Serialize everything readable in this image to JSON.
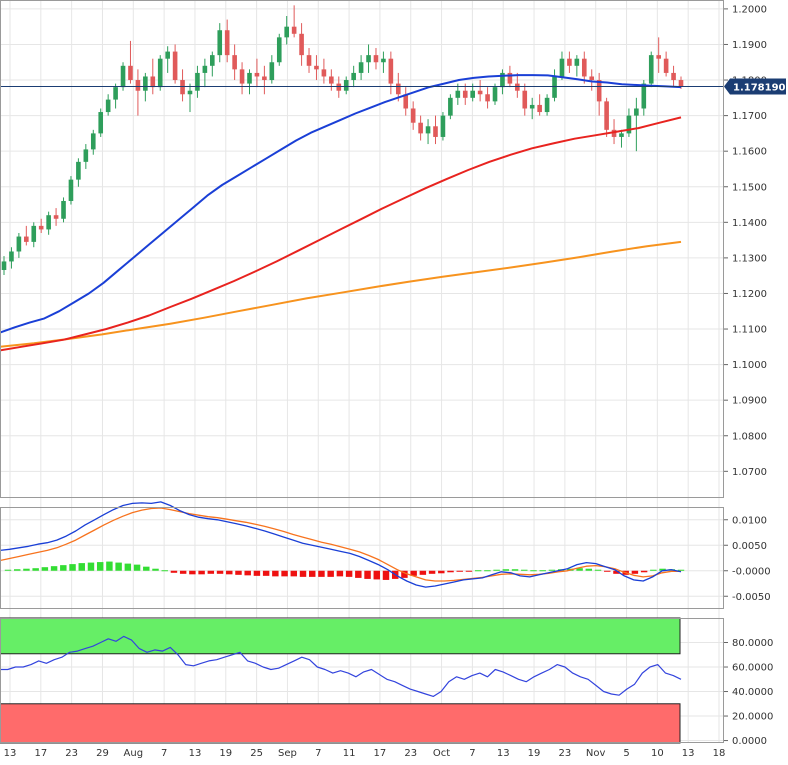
{
  "chart_data": [
    {
      "type": "candlestick",
      "title": "",
      "price_axis": {
        "ylim": [
          1.0625,
          1.2025
        ],
        "ticks": [
          "1.2000",
          "1.1900",
          "1.1800",
          "1.1700",
          "1.1600",
          "1.1500",
          "1.1400",
          "1.1300",
          "1.1200",
          "1.1100",
          "1.1000",
          "1.0900",
          "1.0800",
          "1.0700"
        ],
        "tick_values": [
          1.2,
          1.19,
          1.18,
          1.17,
          1.16,
          1.15,
          1.14,
          1.13,
          1.12,
          1.11,
          1.1,
          1.09,
          1.08,
          1.07
        ]
      },
      "last_price": 1.17819,
      "last_price_label": "1.178190",
      "colors": {
        "up": "#2e9e5b",
        "down": "#e05a5a",
        "sma_fast": "#1a3fd6",
        "sma_mid": "#e8231f",
        "sma_slow": "#f7931e",
        "last_price_line": "#1b3d73"
      },
      "candles": [
        [
          1.1266,
          1.1305,
          1.1252,
          1.129
        ],
        [
          1.129,
          1.133,
          1.127,
          1.1318
        ],
        [
          1.1318,
          1.137,
          1.13,
          1.136
        ],
        [
          1.136,
          1.139,
          1.1335,
          1.1345
        ],
        [
          1.1345,
          1.14,
          1.133,
          1.139
        ],
        [
          1.139,
          1.141,
          1.137,
          1.138
        ],
        [
          1.138,
          1.143,
          1.1365,
          1.142
        ],
        [
          1.142,
          1.144,
          1.139,
          1.141
        ],
        [
          1.141,
          1.147,
          1.14,
          1.146
        ],
        [
          1.146,
          1.153,
          1.145,
          1.152
        ],
        [
          1.152,
          1.158,
          1.15,
          1.157
        ],
        [
          1.157,
          1.162,
          1.155,
          1.1605
        ],
        [
          1.1605,
          1.166,
          1.159,
          1.165
        ],
        [
          1.165,
          1.172,
          1.164,
          1.171
        ],
        [
          1.171,
          1.176,
          1.17,
          1.1745
        ],
        [
          1.1745,
          1.179,
          1.172,
          1.178
        ],
        [
          1.178,
          1.185,
          1.177,
          1.184
        ],
        [
          1.184,
          1.191,
          1.179,
          1.18
        ],
        [
          1.18,
          1.183,
          1.17,
          1.177
        ],
        [
          1.177,
          1.182,
          1.174,
          1.181
        ],
        [
          1.181,
          1.186,
          1.176,
          1.178
        ],
        [
          1.178,
          1.187,
          1.177,
          1.186
        ],
        [
          1.186,
          1.1895,
          1.182,
          1.188
        ],
        [
          1.188,
          1.19,
          1.179,
          1.18
        ],
        [
          1.18,
          1.183,
          1.174,
          1.176
        ],
        [
          1.176,
          1.179,
          1.171,
          1.177
        ],
        [
          1.177,
          1.184,
          1.175,
          1.182
        ],
        [
          1.182,
          1.186,
          1.178,
          1.184
        ],
        [
          1.184,
          1.188,
          1.181,
          1.187
        ],
        [
          1.187,
          1.196,
          1.185,
          1.194
        ],
        [
          1.194,
          1.197,
          1.185,
          1.187
        ],
        [
          1.187,
          1.19,
          1.18,
          1.183
        ],
        [
          1.183,
          1.185,
          1.176,
          1.179
        ],
        [
          1.179,
          1.183,
          1.176,
          1.182
        ],
        [
          1.182,
          1.186,
          1.178,
          1.181
        ],
        [
          1.181,
          1.184,
          1.176,
          1.18
        ],
        [
          1.18,
          1.187,
          1.179,
          1.185
        ],
        [
          1.185,
          1.193,
          1.184,
          1.192
        ],
        [
          1.192,
          1.198,
          1.19,
          1.195
        ],
        [
          1.195,
          1.201,
          1.192,
          1.193
        ],
        [
          1.193,
          1.196,
          1.184,
          1.187
        ],
        [
          1.187,
          1.189,
          1.182,
          1.184
        ],
        [
          1.184,
          1.187,
          1.18,
          1.183
        ],
        [
          1.183,
          1.186,
          1.179,
          1.181
        ],
        [
          1.181,
          1.183,
          1.177,
          1.179
        ],
        [
          1.179,
          1.181,
          1.175,
          1.177
        ],
        [
          1.177,
          1.181,
          1.176,
          1.18
        ],
        [
          1.18,
          1.184,
          1.178,
          1.182
        ],
        [
          1.182,
          1.187,
          1.18,
          1.185
        ],
        [
          1.185,
          1.19,
          1.182,
          1.187
        ],
        [
          1.187,
          1.189,
          1.183,
          1.185
        ],
        [
          1.185,
          1.188,
          1.182,
          1.186
        ],
        [
          1.186,
          1.188,
          1.176,
          1.179
        ],
        [
          1.179,
          1.182,
          1.174,
          1.176
        ],
        [
          1.176,
          1.178,
          1.17,
          1.172
        ],
        [
          1.172,
          1.174,
          1.166,
          1.168
        ],
        [
          1.168,
          1.17,
          1.163,
          1.165
        ],
        [
          1.165,
          1.169,
          1.162,
          1.167
        ],
        [
          1.167,
          1.17,
          1.162,
          1.164
        ],
        [
          1.164,
          1.171,
          1.163,
          1.17
        ],
        [
          1.17,
          1.176,
          1.169,
          1.175
        ],
        [
          1.175,
          1.179,
          1.173,
          1.177
        ],
        [
          1.177,
          1.179,
          1.173,
          1.175
        ],
        [
          1.175,
          1.179,
          1.174,
          1.177
        ],
        [
          1.177,
          1.18,
          1.174,
          1.176
        ],
        [
          1.176,
          1.178,
          1.172,
          1.174
        ],
        [
          1.174,
          1.179,
          1.173,
          1.178
        ],
        [
          1.178,
          1.183,
          1.176,
          1.182
        ],
        [
          1.182,
          1.184,
          1.178,
          1.179
        ],
        [
          1.179,
          1.182,
          1.175,
          1.177
        ],
        [
          1.177,
          1.179,
          1.17,
          1.172
        ],
        [
          1.172,
          1.175,
          1.169,
          1.173
        ],
        [
          1.173,
          1.176,
          1.17,
          1.171
        ],
        [
          1.171,
          1.176,
          1.17,
          1.175
        ],
        [
          1.175,
          1.183,
          1.174,
          1.181
        ],
        [
          1.181,
          1.188,
          1.18,
          1.186
        ],
        [
          1.186,
          1.188,
          1.182,
          1.184
        ],
        [
          1.184,
          1.187,
          1.181,
          1.186
        ],
        [
          1.186,
          1.188,
          1.179,
          1.181
        ],
        [
          1.181,
          1.183,
          1.177,
          1.18
        ],
        [
          1.18,
          1.182,
          1.17,
          1.174
        ],
        [
          1.174,
          1.175,
          1.164,
          1.166
        ],
        [
          1.166,
          1.169,
          1.162,
          1.164
        ],
        [
          1.164,
          1.166,
          1.161,
          1.165
        ],
        [
          1.165,
          1.172,
          1.164,
          1.17
        ],
        [
          1.17,
          1.175,
          1.16,
          1.172
        ],
        [
          1.172,
          1.18,
          1.17,
          1.179
        ],
        [
          1.179,
          1.188,
          1.178,
          1.187
        ],
        [
          1.187,
          1.192,
          1.182,
          1.186
        ],
        [
          1.186,
          1.188,
          1.181,
          1.182
        ],
        [
          1.182,
          1.184,
          1.178,
          1.18
        ],
        [
          1.18,
          1.181,
          1.1775,
          1.1782
        ]
      ],
      "sma_fast": [
        1.109,
        1.1105,
        1.1118,
        1.113,
        1.115,
        1.1175,
        1.12,
        1.123,
        1.1265,
        1.13,
        1.1335,
        1.137,
        1.1405,
        1.144,
        1.1475,
        1.1505,
        1.153,
        1.1555,
        1.158,
        1.1605,
        1.163,
        1.1652,
        1.167,
        1.1688,
        1.1706,
        1.1722,
        1.1738,
        1.1752,
        1.1766,
        1.178,
        1.179,
        1.18,
        1.1806,
        1.181,
        1.1812,
        1.1814,
        1.1814,
        1.1813,
        1.1808,
        1.1802,
        1.1796,
        1.1793,
        1.1788,
        1.1786,
        1.1784,
        1.1782,
        1.178
      ],
      "sma_mid": [
        1.104,
        1.105,
        1.106,
        1.107,
        1.1085,
        1.11,
        1.1118,
        1.1138,
        1.1162,
        1.1185,
        1.121,
        1.1235,
        1.1262,
        1.129,
        1.132,
        1.135,
        1.138,
        1.141,
        1.144,
        1.1468,
        1.1496,
        1.1522,
        1.1547,
        1.157,
        1.159,
        1.1608,
        1.1622,
        1.1635,
        1.1645,
        1.1655,
        1.1665,
        1.168,
        1.1695
      ],
      "sma_slow": [
        1.105,
        1.106,
        1.1072,
        1.1085,
        1.11,
        1.1115,
        1.1132,
        1.115,
        1.1168,
        1.1186,
        1.1202,
        1.1218,
        1.1233,
        1.1247,
        1.126,
        1.1273,
        1.1287,
        1.1302,
        1.1318,
        1.1333,
        1.1345
      ]
    },
    {
      "type": "histogram",
      "ylim": [
        -0.0075,
        0.0125
      ],
      "ticks": [
        "0.0100",
        "0.0050",
        "-0.0000",
        "-0.0050"
      ],
      "tick_values": [
        0.01,
        0.005,
        0,
        -0.005
      ],
      "macd": [
        0.004,
        0.0042,
        0.0045,
        0.0048,
        0.0052,
        0.0055,
        0.006,
        0.0068,
        0.0078,
        0.009,
        0.01,
        0.011,
        0.012,
        0.0128,
        0.0132,
        0.0133,
        0.0132,
        0.0135,
        0.0128,
        0.0118,
        0.011,
        0.0105,
        0.0102,
        0.01,
        0.0096,
        0.0092,
        0.0088,
        0.0083,
        0.0078,
        0.0072,
        0.0066,
        0.006,
        0.0054,
        0.005,
        0.0046,
        0.0042,
        0.0038,
        0.0034,
        0.0028,
        0.002,
        0.0012,
        0.0002,
        -0.001,
        -0.002,
        -0.0028,
        -0.0032,
        -0.003,
        -0.0026,
        -0.0022,
        -0.0018,
        -0.0016,
        -0.0014,
        -0.0008,
        -0.0002,
        -0.0004,
        -0.001,
        -0.0012,
        -0.0008,
        -0.0004,
        0.0,
        0.0004,
        0.0012,
        0.0016,
        0.0014,
        0.0008,
        0.0002,
        -0.001,
        -0.0018,
        -0.002,
        -0.0012,
        0.0,
        0.0002,
        -0.0002
      ],
      "signal": [
        0.002,
        0.0024,
        0.0028,
        0.0032,
        0.0036,
        0.004,
        0.0045,
        0.0052,
        0.006,
        0.007,
        0.008,
        0.009,
        0.0099,
        0.0107,
        0.0114,
        0.0119,
        0.0122,
        0.0123,
        0.012,
        0.0116,
        0.0112,
        0.0109,
        0.0106,
        0.0104,
        0.0101,
        0.0098,
        0.0095,
        0.0091,
        0.0087,
        0.0082,
        0.0077,
        0.0071,
        0.0066,
        0.0061,
        0.0056,
        0.0052,
        0.0047,
        0.0042,
        0.0037,
        0.003,
        0.0022,
        0.0012,
        0.0002,
        -0.0006,
        -0.0012,
        -0.0018,
        -0.002,
        -0.002,
        -0.0019,
        -0.0017,
        -0.0015,
        -0.0013,
        -0.001,
        -0.0007,
        -0.0006,
        -0.0007,
        -0.0008,
        -0.0007,
        -0.0005,
        -0.0002,
        0.0,
        0.0005,
        0.0009,
        0.001,
        0.0008,
        0.0004,
        -0.0003,
        -0.0009,
        -0.0012,
        -0.001,
        -0.0004,
        -0.0001,
        -0.0001
      ],
      "histogram": [
        0.0002,
        0.0003,
        0.0004,
        0.0005,
        0.0007,
        0.0009,
        0.0011,
        0.0013,
        0.0015,
        0.0016,
        0.0017,
        0.0018,
        0.0016,
        0.0014,
        0.0012,
        0.0008,
        0.0004,
        0.0001,
        -0.0004,
        -0.0006,
        -0.0007,
        -0.0007,
        -0.0006,
        -0.0006,
        -0.0007,
        -0.0008,
        -0.0009,
        -0.001,
        -0.001,
        -0.0011,
        -0.0011,
        -0.0011,
        -0.0012,
        -0.0012,
        -0.0012,
        -0.0012,
        -0.0011,
        -0.0012,
        -0.0014,
        -0.0016,
        -0.0017,
        -0.0018,
        -0.0016,
        -0.0014,
        -0.001,
        -0.0008,
        -0.0006,
        -0.0005,
        -0.0003,
        -0.0002,
        -0.0001,
        0.0001,
        0.0001,
        0.0002,
        0.0003,
        0.0003,
        0.0002,
        0.0001,
        0.0001,
        0.0002,
        0.0003,
        0.0004,
        0.0005,
        0.0004,
        0.0002,
        -0.0002,
        -0.0006,
        -0.0008,
        -0.0006,
        -0.0003,
        0.0002,
        0.0004,
        0.0003,
        0.0002
      ],
      "colors": {
        "macd": "#1a3fd6",
        "signal": "#f7731e",
        "hist_up": "#33dd33",
        "hist_down": "#ee1111"
      }
    },
    {
      "type": "line",
      "ylim": [
        -2,
        100
      ],
      "ticks": [
        "80.0000",
        "60.0000",
        "40.0000",
        "20.0000",
        "0.0000"
      ],
      "tick_values": [
        80,
        60,
        40,
        20,
        0
      ],
      "overbought": 70,
      "oversold": 30,
      "values": [
        58,
        58,
        60,
        60,
        62,
        65,
        63,
        66,
        68,
        72,
        73,
        75,
        77,
        80,
        83,
        81,
        85,
        82,
        75,
        72,
        74,
        73,
        76,
        70,
        62,
        61,
        63,
        65,
        66,
        68,
        70,
        72,
        65,
        63,
        60,
        58,
        59,
        62,
        65,
        68,
        66,
        60,
        58,
        55,
        57,
        55,
        52,
        56,
        58,
        54,
        50,
        48,
        45,
        42,
        40,
        38,
        36,
        40,
        48,
        52,
        50,
        53,
        55,
        52,
        58,
        56,
        53,
        50,
        48,
        52,
        55,
        58,
        62,
        60,
        55,
        52,
        50,
        45,
        40,
        38,
        37,
        42,
        46,
        55,
        60,
        62,
        55,
        53,
        50
      ],
      "colors": {
        "line": "#3344dd",
        "overbought_zone": "#66ee66",
        "oversold_zone": "#ff6b6b"
      }
    }
  ],
  "x_axis": {
    "labels": [
      "13",
      "17",
      "23",
      "29",
      "Aug",
      "7",
      "13",
      "19",
      "25",
      "Sep",
      "7",
      "11",
      "17",
      "23",
      "Oct",
      "7",
      "13",
      "19",
      "23",
      "Nov",
      "5",
      "10",
      "13",
      "18"
    ]
  }
}
